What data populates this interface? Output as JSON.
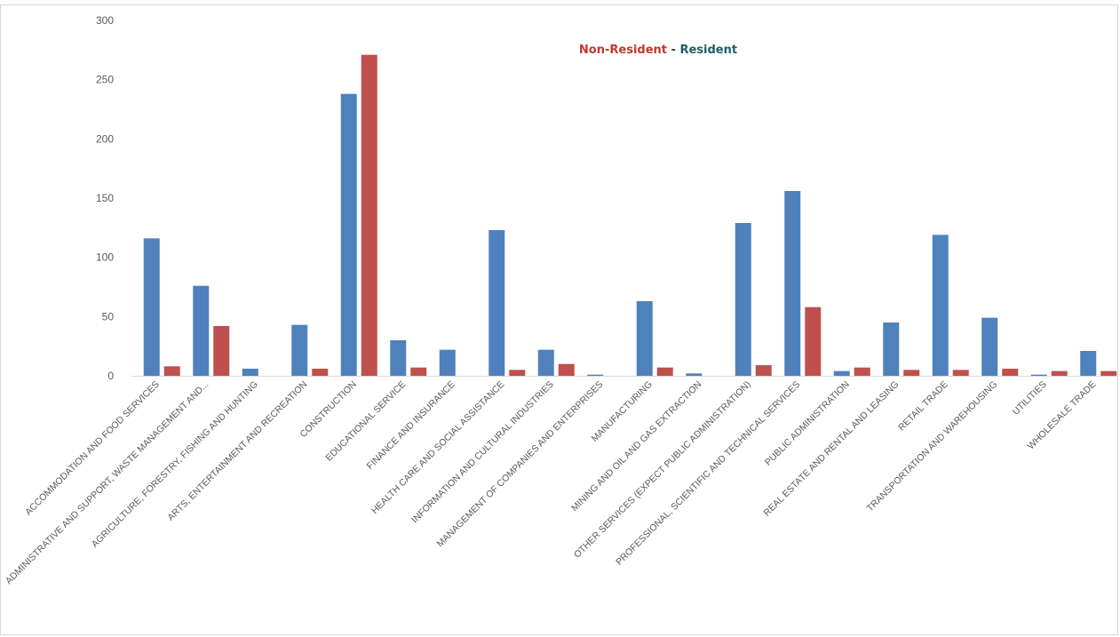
{
  "chart_data": {
    "type": "bar",
    "title": "",
    "xlabel": "",
    "ylabel": "",
    "ylim": [
      0,
      300
    ],
    "yticks": [
      0,
      50,
      100,
      150,
      200,
      250,
      300
    ],
    "grid": false,
    "legend": {
      "placement": "top-center",
      "items": [
        "Non-Resident",
        "Resident"
      ],
      "separator": "-",
      "colors": [
        "#c0392b",
        "#1f5f66"
      ]
    },
    "categories": [
      "ACCOMMODATION AND FOOD SERVICES",
      "ADMINISTRATIVE AND SUPPORT, WASTE MANAGEMENT AND...",
      "AGRICULTURE, FORESTRY, FISHING AND HUNTING",
      "ARTS, ENTERTAINMENT AND RECREATION",
      "CONSTRUCTION",
      "EDUCATIONAL SERVICE",
      "FINANCE AND INSURANCE",
      "HEALTH CARE AND SOCIAL ASSISTANCE",
      "INFORMATION AND CULTURAL INDUSTRIES",
      "MANAGEMENT OF COMPANIES AND ENTERPRISES",
      "MANUFACTURING",
      "MINING AND OIL AND GAS EXTRACTION",
      "OTHER SERVICES (EXPECT PUBLIC ADMINISTRATION)",
      "PROFESSIONAL, SCIENTIFIC AND TECHNICAL SERVICES",
      "PUBLIC ADMINISTRATION",
      "REAL ESTATE AND RENTAL AND LEASING",
      "RETAIL TRADE",
      "TRANSPORTATION AND WAREHOUSING",
      "UTILITIES",
      "WHOLESALE TRADE"
    ],
    "series": [
      {
        "color": "#4f81bd",
        "values": [
          116,
          76,
          6,
          43,
          238,
          30,
          22,
          123,
          22,
          1,
          63,
          2,
          129,
          156,
          4,
          45,
          119,
          49,
          1,
          21
        ]
      },
      {
        "color": "#c0504d",
        "values": [
          8,
          42,
          0,
          6,
          271,
          7,
          0,
          5,
          10,
          0,
          7,
          0,
          9,
          58,
          7,
          5,
          5,
          6,
          4,
          4
        ]
      }
    ]
  }
}
